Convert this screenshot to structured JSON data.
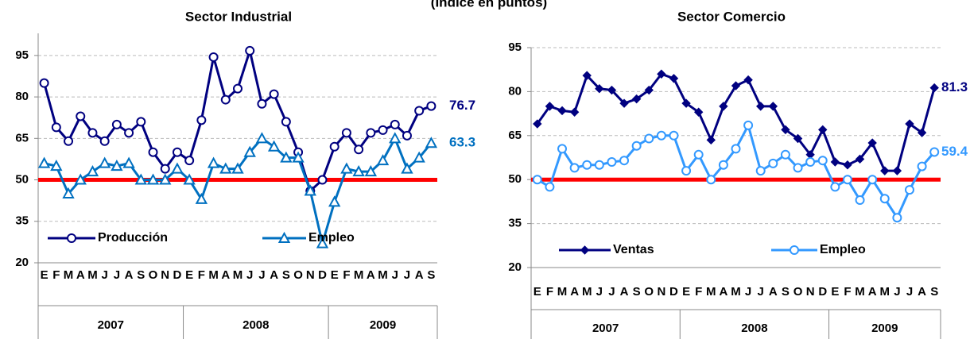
{
  "title": "(Índice en puntos)",
  "chart_data": [
    {
      "type": "line",
      "title": "Sector Industrial",
      "categories": [
        "E",
        "F",
        "M",
        "A",
        "M",
        "J",
        "J",
        "A",
        "S",
        "O",
        "N",
        "D",
        "E",
        "F",
        "M",
        "A",
        "M",
        "J",
        "J",
        "A",
        "S",
        "O",
        "N",
        "D",
        "E",
        "F",
        "M",
        "A",
        "M",
        "J",
        "J",
        "A",
        "S"
      ],
      "years": [
        "2007",
        "2008",
        "2009"
      ],
      "ylim": [
        20,
        103
      ],
      "yticks": [
        20,
        35,
        50,
        65,
        80,
        95
      ],
      "grid": true,
      "reference_line": {
        "value": 50,
        "color": "#ff0000"
      },
      "legend": "lower left",
      "series": [
        {
          "name": "Producción",
          "color": "#000080",
          "marker": "circle",
          "values": [
            85,
            69,
            64,
            73,
            67,
            64,
            70,
            67,
            71,
            60,
            54,
            60,
            57,
            71.6,
            94.4,
            79,
            83,
            96.7,
            77.5,
            81,
            71,
            60,
            46,
            50,
            62,
            67,
            61,
            67,
            68,
            70,
            66,
            75,
            76.7
          ]
        },
        {
          "name": "Empleo",
          "color": "#0070c0",
          "marker": "triangle",
          "values": [
            56,
            55,
            45,
            50,
            53,
            56,
            55,
            56,
            50,
            50,
            50,
            54,
            50,
            43,
            56,
            54,
            54,
            60,
            65,
            62,
            58,
            58,
            46,
            27,
            42,
            54,
            53,
            53,
            57,
            65,
            54,
            58,
            63.3
          ]
        }
      ]
    },
    {
      "type": "line",
      "title": "Sector Comercio",
      "categories": [
        "E",
        "F",
        "M",
        "A",
        "M",
        "J",
        "J",
        "A",
        "S",
        "O",
        "N",
        "D",
        "E",
        "F",
        "M",
        "A",
        "M",
        "J",
        "J",
        "A",
        "S",
        "O",
        "N",
        "D",
        "E",
        "F",
        "M",
        "A",
        "M",
        "J",
        "J",
        "A",
        "S"
      ],
      "years": [
        "2007",
        "2008",
        "2009"
      ],
      "ylim": [
        20,
        95
      ],
      "yticks": [
        20,
        35,
        50,
        65,
        80,
        95
      ],
      "grid": true,
      "reference_line": {
        "value": 50,
        "color": "#ff0000"
      },
      "legend": "bottom",
      "series": [
        {
          "name": "Ventas",
          "color": "#000080",
          "marker": "diamond",
          "values": [
            69,
            75,
            73.5,
            73,
            85.5,
            81,
            80.5,
            76,
            77.5,
            80.5,
            86,
            84.5,
            76,
            73,
            63.5,
            75,
            82,
            84,
            75,
            75,
            67,
            64,
            58.5,
            67,
            56,
            55,
            57,
            62.5,
            53,
            53,
            69,
            66,
            81.3
          ]
        },
        {
          "name": "Empleo",
          "color": "#3399ff",
          "marker": "circle",
          "values": [
            50,
            47.5,
            60.5,
            54,
            55,
            55,
            56,
            56.5,
            61.5,
            64,
            65,
            65,
            53,
            58.5,
            50,
            55,
            60.5,
            68.5,
            53,
            55.5,
            58.5,
            54,
            56,
            56.5,
            47.5,
            50,
            43,
            50,
            43.5,
            37,
            46.5,
            54.5,
            59.4
          ]
        }
      ]
    }
  ]
}
